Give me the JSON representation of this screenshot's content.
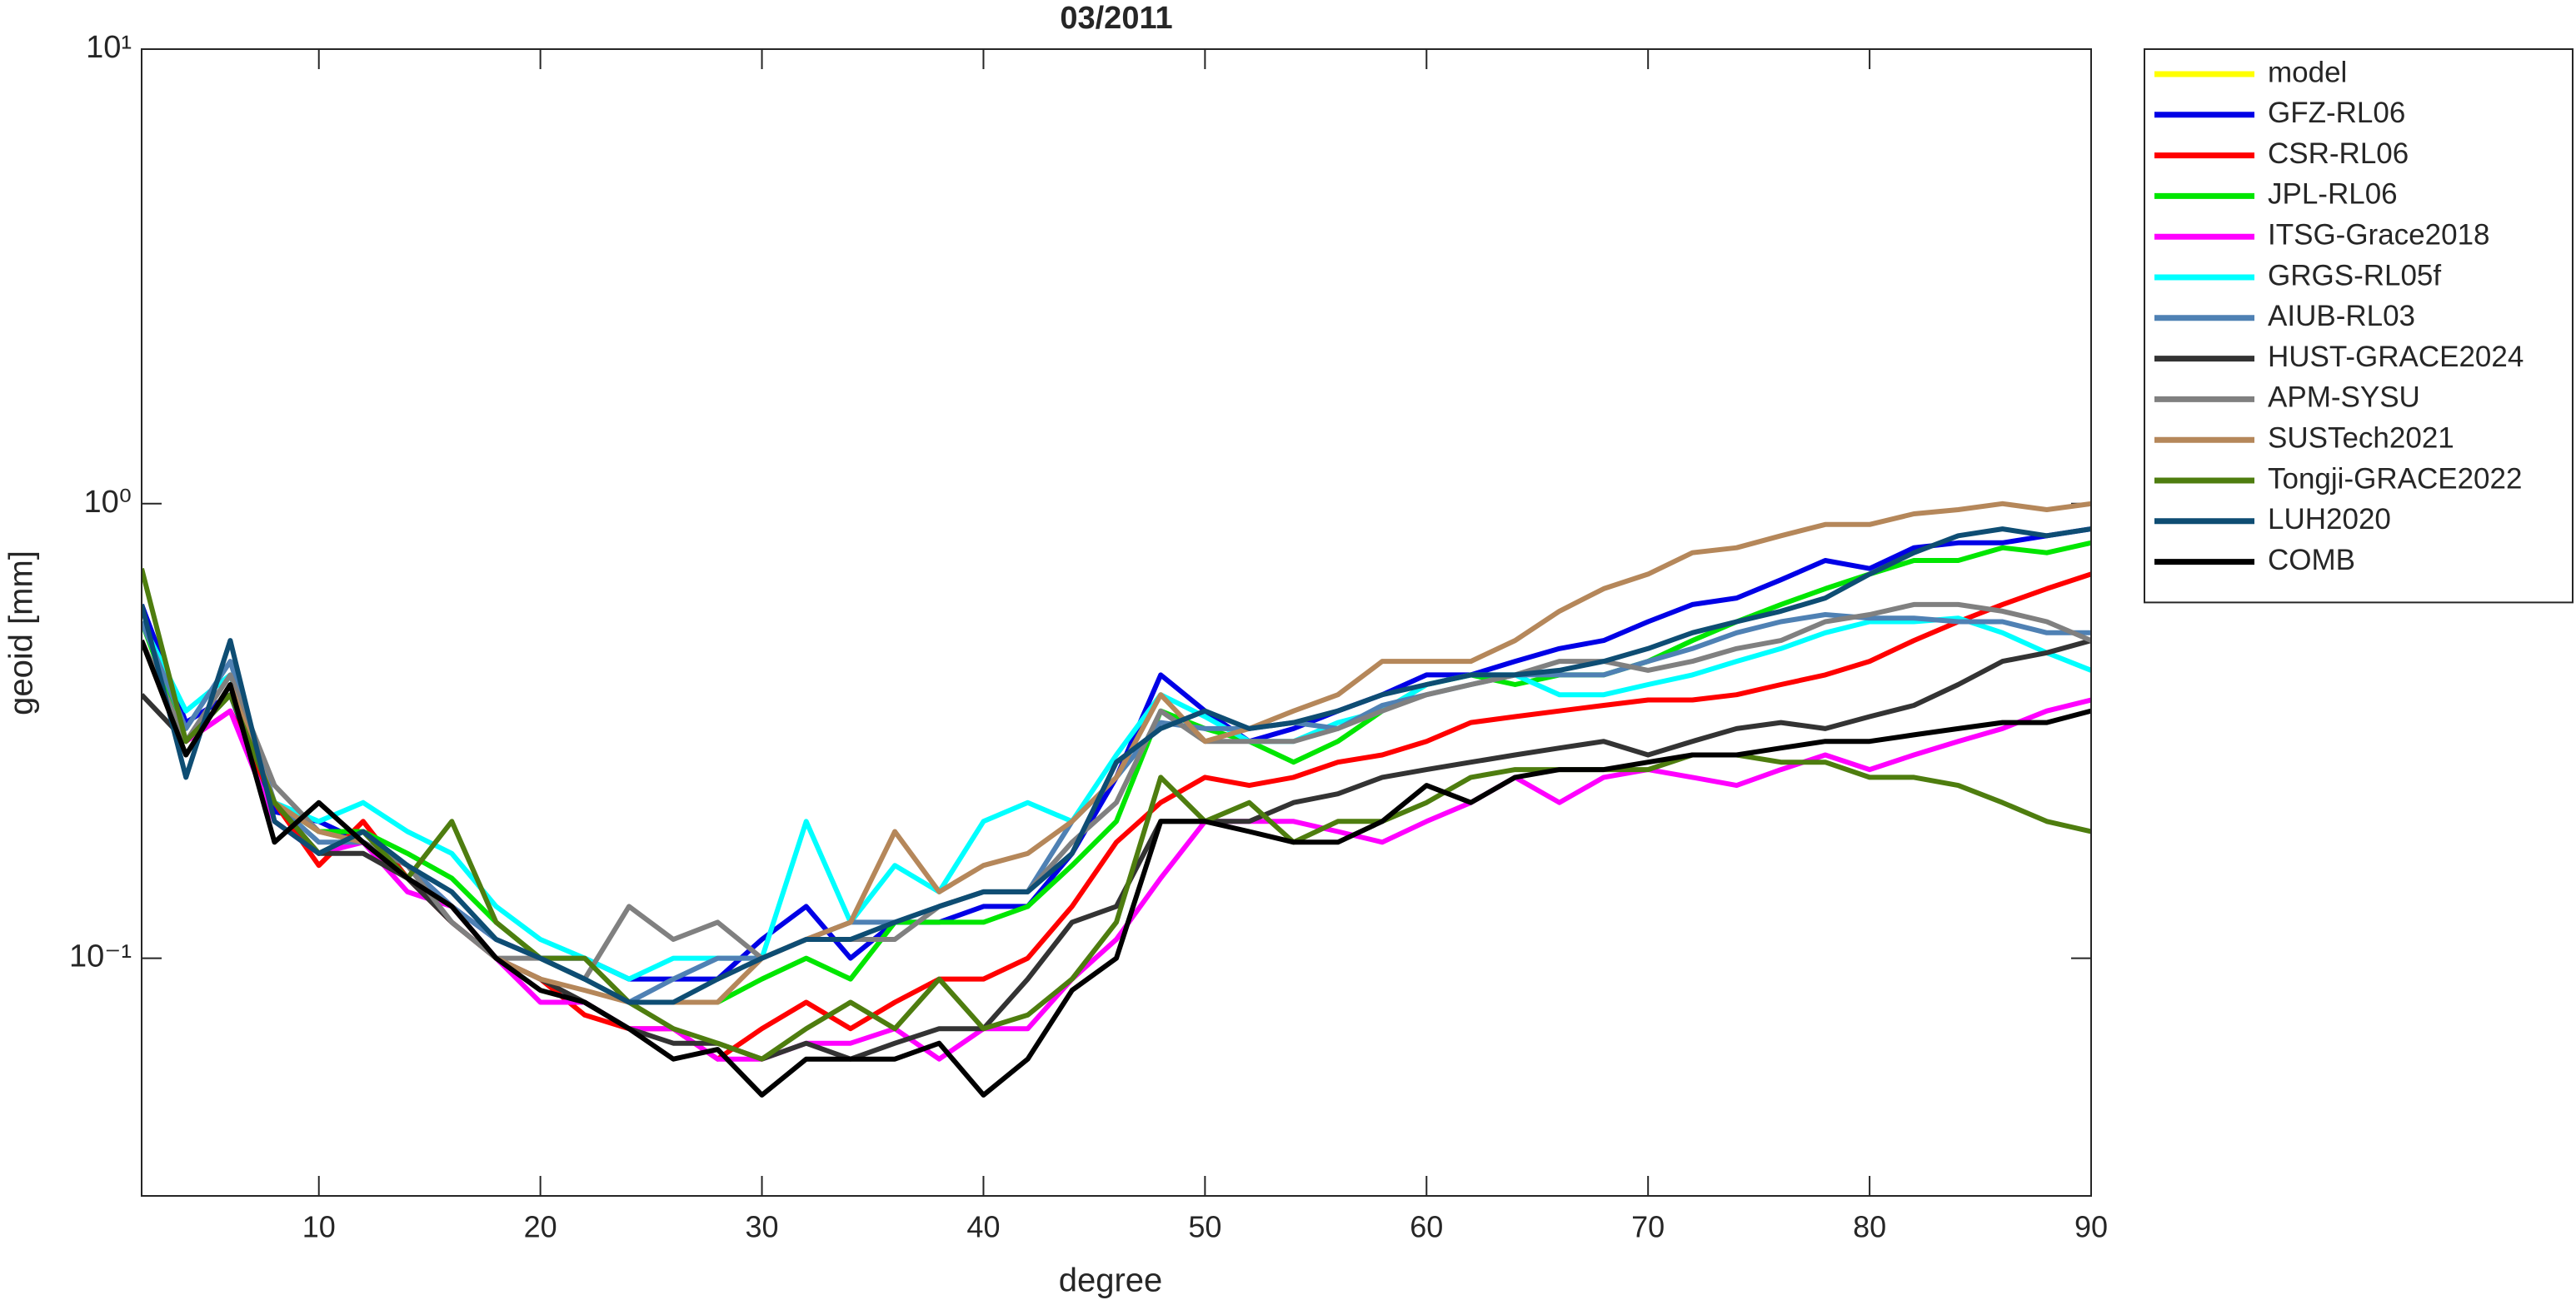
{
  "chart_data": {
    "type": "line",
    "title": "03/2011",
    "xlabel": "degree",
    "ylabel": "geoid [mm]",
    "yscale": "log",
    "xlim": [
      2,
      90
    ],
    "ylim": [
      0.03,
      10
    ],
    "xticks": [
      10,
      20,
      30,
      40,
      50,
      60,
      70,
      80,
      90
    ],
    "yticks": [
      {
        "value": 0.1,
        "label": "10⁻¹"
      },
      {
        "value": 1,
        "label": "10⁰"
      },
      {
        "value": 10,
        "label": "10¹"
      }
    ],
    "grid": false,
    "legend": "outside-top-right",
    "x": [
      2,
      4,
      6,
      8,
      10,
      12,
      14,
      16,
      18,
      20,
      22,
      24,
      26,
      28,
      30,
      32,
      34,
      36,
      38,
      40,
      42,
      44,
      46,
      48,
      50,
      52,
      54,
      56,
      58,
      60,
      62,
      64,
      66,
      68,
      70,
      72,
      74,
      76,
      78,
      80,
      82,
      84,
      86,
      88,
      90
    ],
    "series": [
      {
        "name": "model",
        "color": "#ffff00",
        "values": [
          null,
          null,
          null,
          null,
          null,
          null,
          null,
          null,
          null,
          null,
          null,
          null,
          null,
          null,
          null,
          null,
          null,
          null,
          null,
          null,
          null,
          null,
          null,
          null,
          null,
          null,
          null,
          null,
          null,
          null,
          null,
          null,
          null,
          null,
          null,
          null,
          null,
          null,
          null,
          null,
          null,
          null,
          null,
          null,
          null
        ]
      },
      {
        "name": "GFZ-RL06",
        "color": "#0000e6",
        "values": [
          0.6,
          0.33,
          0.38,
          0.21,
          0.2,
          0.18,
          0.16,
          0.13,
          0.11,
          0.1,
          0.1,
          0.09,
          0.09,
          0.09,
          0.11,
          0.13,
          0.1,
          0.12,
          0.12,
          0.13,
          0.13,
          0.17,
          0.25,
          0.42,
          0.35,
          0.3,
          0.32,
          0.35,
          0.38,
          0.42,
          0.42,
          0.45,
          0.48,
          0.5,
          0.55,
          0.6,
          0.62,
          0.68,
          0.75,
          0.72,
          0.8,
          0.82,
          0.82,
          0.85,
          0.88
        ]
      },
      {
        "name": "CSR-RL06",
        "color": "#ff0000",
        "values": [
          0.5,
          0.3,
          0.35,
          0.22,
          0.16,
          0.2,
          0.15,
          0.12,
          0.1,
          0.09,
          0.075,
          0.07,
          0.07,
          0.06,
          0.07,
          0.08,
          0.07,
          0.08,
          0.09,
          0.09,
          0.1,
          0.13,
          0.18,
          0.22,
          0.25,
          0.24,
          0.25,
          0.27,
          0.28,
          0.3,
          0.33,
          0.34,
          0.35,
          0.36,
          0.37,
          0.37,
          0.38,
          0.4,
          0.42,
          0.45,
          0.5,
          0.55,
          0.6,
          0.65,
          0.7
        ]
      },
      {
        "name": "JPL-RL06",
        "color": "#00e600",
        "values": [
          0.55,
          0.3,
          0.38,
          0.22,
          0.19,
          0.19,
          0.17,
          0.15,
          0.12,
          0.1,
          0.09,
          0.08,
          0.08,
          0.08,
          0.09,
          0.1,
          0.09,
          0.12,
          0.12,
          0.12,
          0.13,
          0.16,
          0.2,
          0.35,
          0.32,
          0.3,
          0.27,
          0.3,
          0.35,
          0.4,
          0.42,
          0.4,
          0.42,
          0.42,
          0.45,
          0.5,
          0.55,
          0.6,
          0.65,
          0.7,
          0.75,
          0.75,
          0.8,
          0.78,
          0.82
        ]
      },
      {
        "name": "ITSG-Grace2018",
        "color": "#ff00ff",
        "values": [
          0.5,
          0.3,
          0.35,
          0.2,
          0.17,
          0.18,
          0.14,
          0.13,
          0.1,
          0.08,
          0.08,
          0.07,
          0.07,
          0.06,
          0.06,
          0.065,
          0.065,
          0.07,
          0.06,
          0.07,
          0.07,
          0.09,
          0.11,
          0.15,
          0.2,
          0.2,
          0.2,
          0.19,
          0.18,
          0.2,
          0.22,
          0.25,
          0.22,
          0.25,
          0.26,
          0.25,
          0.24,
          0.26,
          0.28,
          0.26,
          0.28,
          0.3,
          0.32,
          0.35,
          0.37
        ]
      },
      {
        "name": "GRGS-RL05f",
        "color": "#00ffff",
        "values": [
          0.55,
          0.35,
          0.42,
          0.22,
          0.2,
          0.22,
          0.19,
          0.17,
          0.13,
          0.11,
          0.1,
          0.09,
          0.1,
          0.1,
          0.1,
          0.2,
          0.12,
          0.16,
          0.14,
          0.2,
          0.22,
          0.2,
          0.28,
          0.38,
          0.34,
          0.3,
          0.3,
          0.33,
          0.35,
          0.4,
          0.42,
          0.42,
          0.38,
          0.38,
          0.4,
          0.42,
          0.45,
          0.48,
          0.52,
          0.55,
          0.55,
          0.56,
          0.52,
          0.47,
          0.43
        ]
      },
      {
        "name": "AIUB-RL03",
        "color": "#4f81b4",
        "values": [
          0.55,
          0.32,
          0.45,
          0.22,
          0.18,
          0.18,
          0.16,
          0.13,
          0.11,
          0.1,
          0.09,
          0.08,
          0.09,
          0.1,
          0.1,
          0.11,
          0.12,
          0.12,
          0.13,
          0.14,
          0.14,
          0.2,
          0.25,
          0.33,
          0.32,
          0.32,
          0.33,
          0.32,
          0.36,
          0.38,
          0.4,
          0.42,
          0.42,
          0.42,
          0.45,
          0.48,
          0.52,
          0.55,
          0.57,
          0.56,
          0.56,
          0.55,
          0.55,
          0.52,
          0.52
        ]
      },
      {
        "name": "HUST-GRACE2024",
        "color": "#333333",
        "values": [
          0.38,
          0.3,
          0.38,
          0.22,
          0.17,
          0.17,
          0.15,
          0.12,
          0.1,
          0.09,
          0.08,
          0.07,
          0.065,
          0.065,
          0.06,
          0.065,
          0.06,
          0.065,
          0.07,
          0.07,
          0.09,
          0.12,
          0.13,
          0.2,
          0.2,
          0.2,
          0.22,
          0.23,
          0.25,
          0.26,
          0.27,
          0.28,
          0.29,
          0.3,
          0.28,
          0.3,
          0.32,
          0.33,
          0.32,
          0.34,
          0.36,
          0.4,
          0.45,
          0.47,
          0.5
        ]
      },
      {
        "name": "APM-SYSU",
        "color": "#808080",
        "values": [
          0.5,
          0.3,
          0.42,
          0.24,
          0.19,
          0.18,
          0.16,
          0.12,
          0.1,
          0.1,
          0.09,
          0.13,
          0.11,
          0.12,
          0.1,
          0.11,
          0.11,
          0.11,
          0.13,
          0.14,
          0.14,
          0.18,
          0.22,
          0.35,
          0.3,
          0.3,
          0.3,
          0.32,
          0.35,
          0.38,
          0.4,
          0.42,
          0.45,
          0.45,
          0.43,
          0.45,
          0.48,
          0.5,
          0.55,
          0.57,
          0.6,
          0.6,
          0.58,
          0.55,
          0.5
        ]
      },
      {
        "name": "SUSTech2021",
        "color": "#b5875a",
        "values": [
          0.5,
          0.28,
          0.4,
          0.22,
          0.19,
          0.18,
          0.15,
          0.13,
          0.1,
          0.09,
          0.085,
          0.08,
          0.08,
          0.08,
          0.1,
          0.11,
          0.12,
          0.19,
          0.14,
          0.16,
          0.17,
          0.2,
          0.25,
          0.38,
          0.3,
          0.32,
          0.35,
          0.38,
          0.45,
          0.45,
          0.45,
          0.5,
          0.58,
          0.65,
          0.7,
          0.78,
          0.8,
          0.85,
          0.9,
          0.9,
          0.95,
          0.97,
          1.0,
          0.97,
          1.0
        ]
      },
      {
        "name": "Tongji-GRACE2022",
        "color": "#4e7d0f",
        "values": [
          0.72,
          0.3,
          0.38,
          0.22,
          0.17,
          0.19,
          0.15,
          0.2,
          0.12,
          0.1,
          0.1,
          0.08,
          0.07,
          0.065,
          0.06,
          0.07,
          0.08,
          0.07,
          0.09,
          0.07,
          0.075,
          0.09,
          0.12,
          0.25,
          0.2,
          0.22,
          0.18,
          0.2,
          0.2,
          0.22,
          0.25,
          0.26,
          0.26,
          0.26,
          0.26,
          0.28,
          0.28,
          0.27,
          0.27,
          0.25,
          0.25,
          0.24,
          0.22,
          0.2,
          0.19
        ]
      },
      {
        "name": "LUH2020",
        "color": "#0e4d73",
        "values": [
          0.6,
          0.25,
          0.5,
          0.2,
          0.17,
          0.19,
          0.16,
          0.14,
          0.11,
          0.1,
          0.09,
          0.08,
          0.08,
          0.09,
          0.1,
          0.11,
          0.11,
          0.12,
          0.13,
          0.14,
          0.14,
          0.17,
          0.27,
          0.32,
          0.35,
          0.32,
          0.33,
          0.35,
          0.38,
          0.4,
          0.42,
          0.42,
          0.43,
          0.45,
          0.48,
          0.52,
          0.55,
          0.58,
          0.62,
          0.7,
          0.78,
          0.85,
          0.88,
          0.85,
          0.88
        ]
      },
      {
        "name": "COMB",
        "color": "#000000",
        "values": [
          0.5,
          0.28,
          0.4,
          0.18,
          0.22,
          0.18,
          0.15,
          0.13,
          0.1,
          0.085,
          0.08,
          0.07,
          0.06,
          0.063,
          0.05,
          0.06,
          0.06,
          0.06,
          0.065,
          0.05,
          0.06,
          0.085,
          0.1,
          0.2,
          0.2,
          0.19,
          0.18,
          0.18,
          0.2,
          0.24,
          0.22,
          0.25,
          0.26,
          0.26,
          0.27,
          0.28,
          0.28,
          0.29,
          0.3,
          0.3,
          0.31,
          0.32,
          0.33,
          0.33,
          0.35
        ]
      }
    ]
  }
}
